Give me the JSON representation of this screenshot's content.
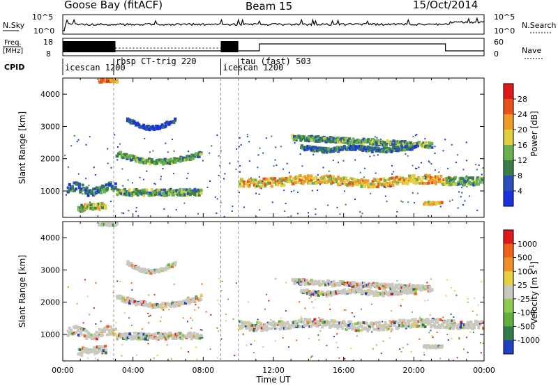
{
  "header": {
    "station": "Goose Bay (fitACF)",
    "beam": "Beam 15",
    "date": "15/Oct/2014"
  },
  "status_panels": {
    "nsky_label": "N.Sky",
    "nsky_ticks": [
      "10^5",
      "10^0"
    ],
    "nsearch_label": "N.Search",
    "nsearch_ticks": [
      "10^5",
      "10^0"
    ],
    "freq_label_line1": "Freq.",
    "freq_label_line2": "[MHz]",
    "freq_ticks": [
      "18",
      "8"
    ],
    "nave_label": "Nave",
    "nave_ticks": [
      "60",
      "0"
    ],
    "cpid_label": "CPID",
    "cpid_segments": [
      {
        "name": "icescan 1200",
        "start_hour": 0.0
      },
      {
        "name": "rbsp CT-trig 220",
        "start_hour": 2.9
      },
      {
        "name": "icescan 1200",
        "start_hour": 9.0
      },
      {
        "name": "tau (fast) 503",
        "start_hour": 10.0
      }
    ]
  },
  "colors": {
    "panel_border": "#000000",
    "high_power": "#e8301c",
    "ground_grey": "#c8c8c0"
  },
  "chart_data": [
    {
      "type": "heatmap",
      "quantity": "Power",
      "ylabel": "Slant Range [km]",
      "yticks": [
        1000,
        2000,
        3000,
        4000
      ],
      "ylim": [
        180,
        4500
      ],
      "xlim_hours": [
        0,
        24
      ],
      "colorbar": {
        "label": "Power [dB]",
        "ticks": [
          "4",
          "8",
          "12",
          "16",
          "20",
          "24",
          "28"
        ],
        "colors": [
          "#1830e0",
          "#2850b8",
          "#3a7f4a",
          "#68b050",
          "#e0d040",
          "#f09a28",
          "#e8501c",
          "#e01818"
        ]
      }
    },
    {
      "type": "heatmap",
      "quantity": "Velocity",
      "ylabel": "Slant Range [km]",
      "yticks": [
        1000,
        2000,
        3000,
        4000
      ],
      "ylim": [
        180,
        4500
      ],
      "xlim_hours": [
        0,
        24
      ],
      "xlabel": "Time UT",
      "xticks": [
        "00:00",
        "04:00",
        "08:00",
        "12:00",
        "16:00",
        "20:00",
        "00:00"
      ],
      "colorbar": {
        "label": "Velocity [m s",
        "label_exponent": "-1",
        "label_suffix": "]",
        "ticks": [
          "1000",
          "500",
          "100",
          "25",
          "-25",
          "-100",
          "-500",
          "-1000"
        ],
        "colors": [
          "#2040c0",
          "#307c48",
          "#60b040",
          "#8ccc50",
          "#c8c8c0",
          "#e8d040",
          "#f09028",
          "#f06018",
          "#e01818"
        ]
      }
    }
  ]
}
